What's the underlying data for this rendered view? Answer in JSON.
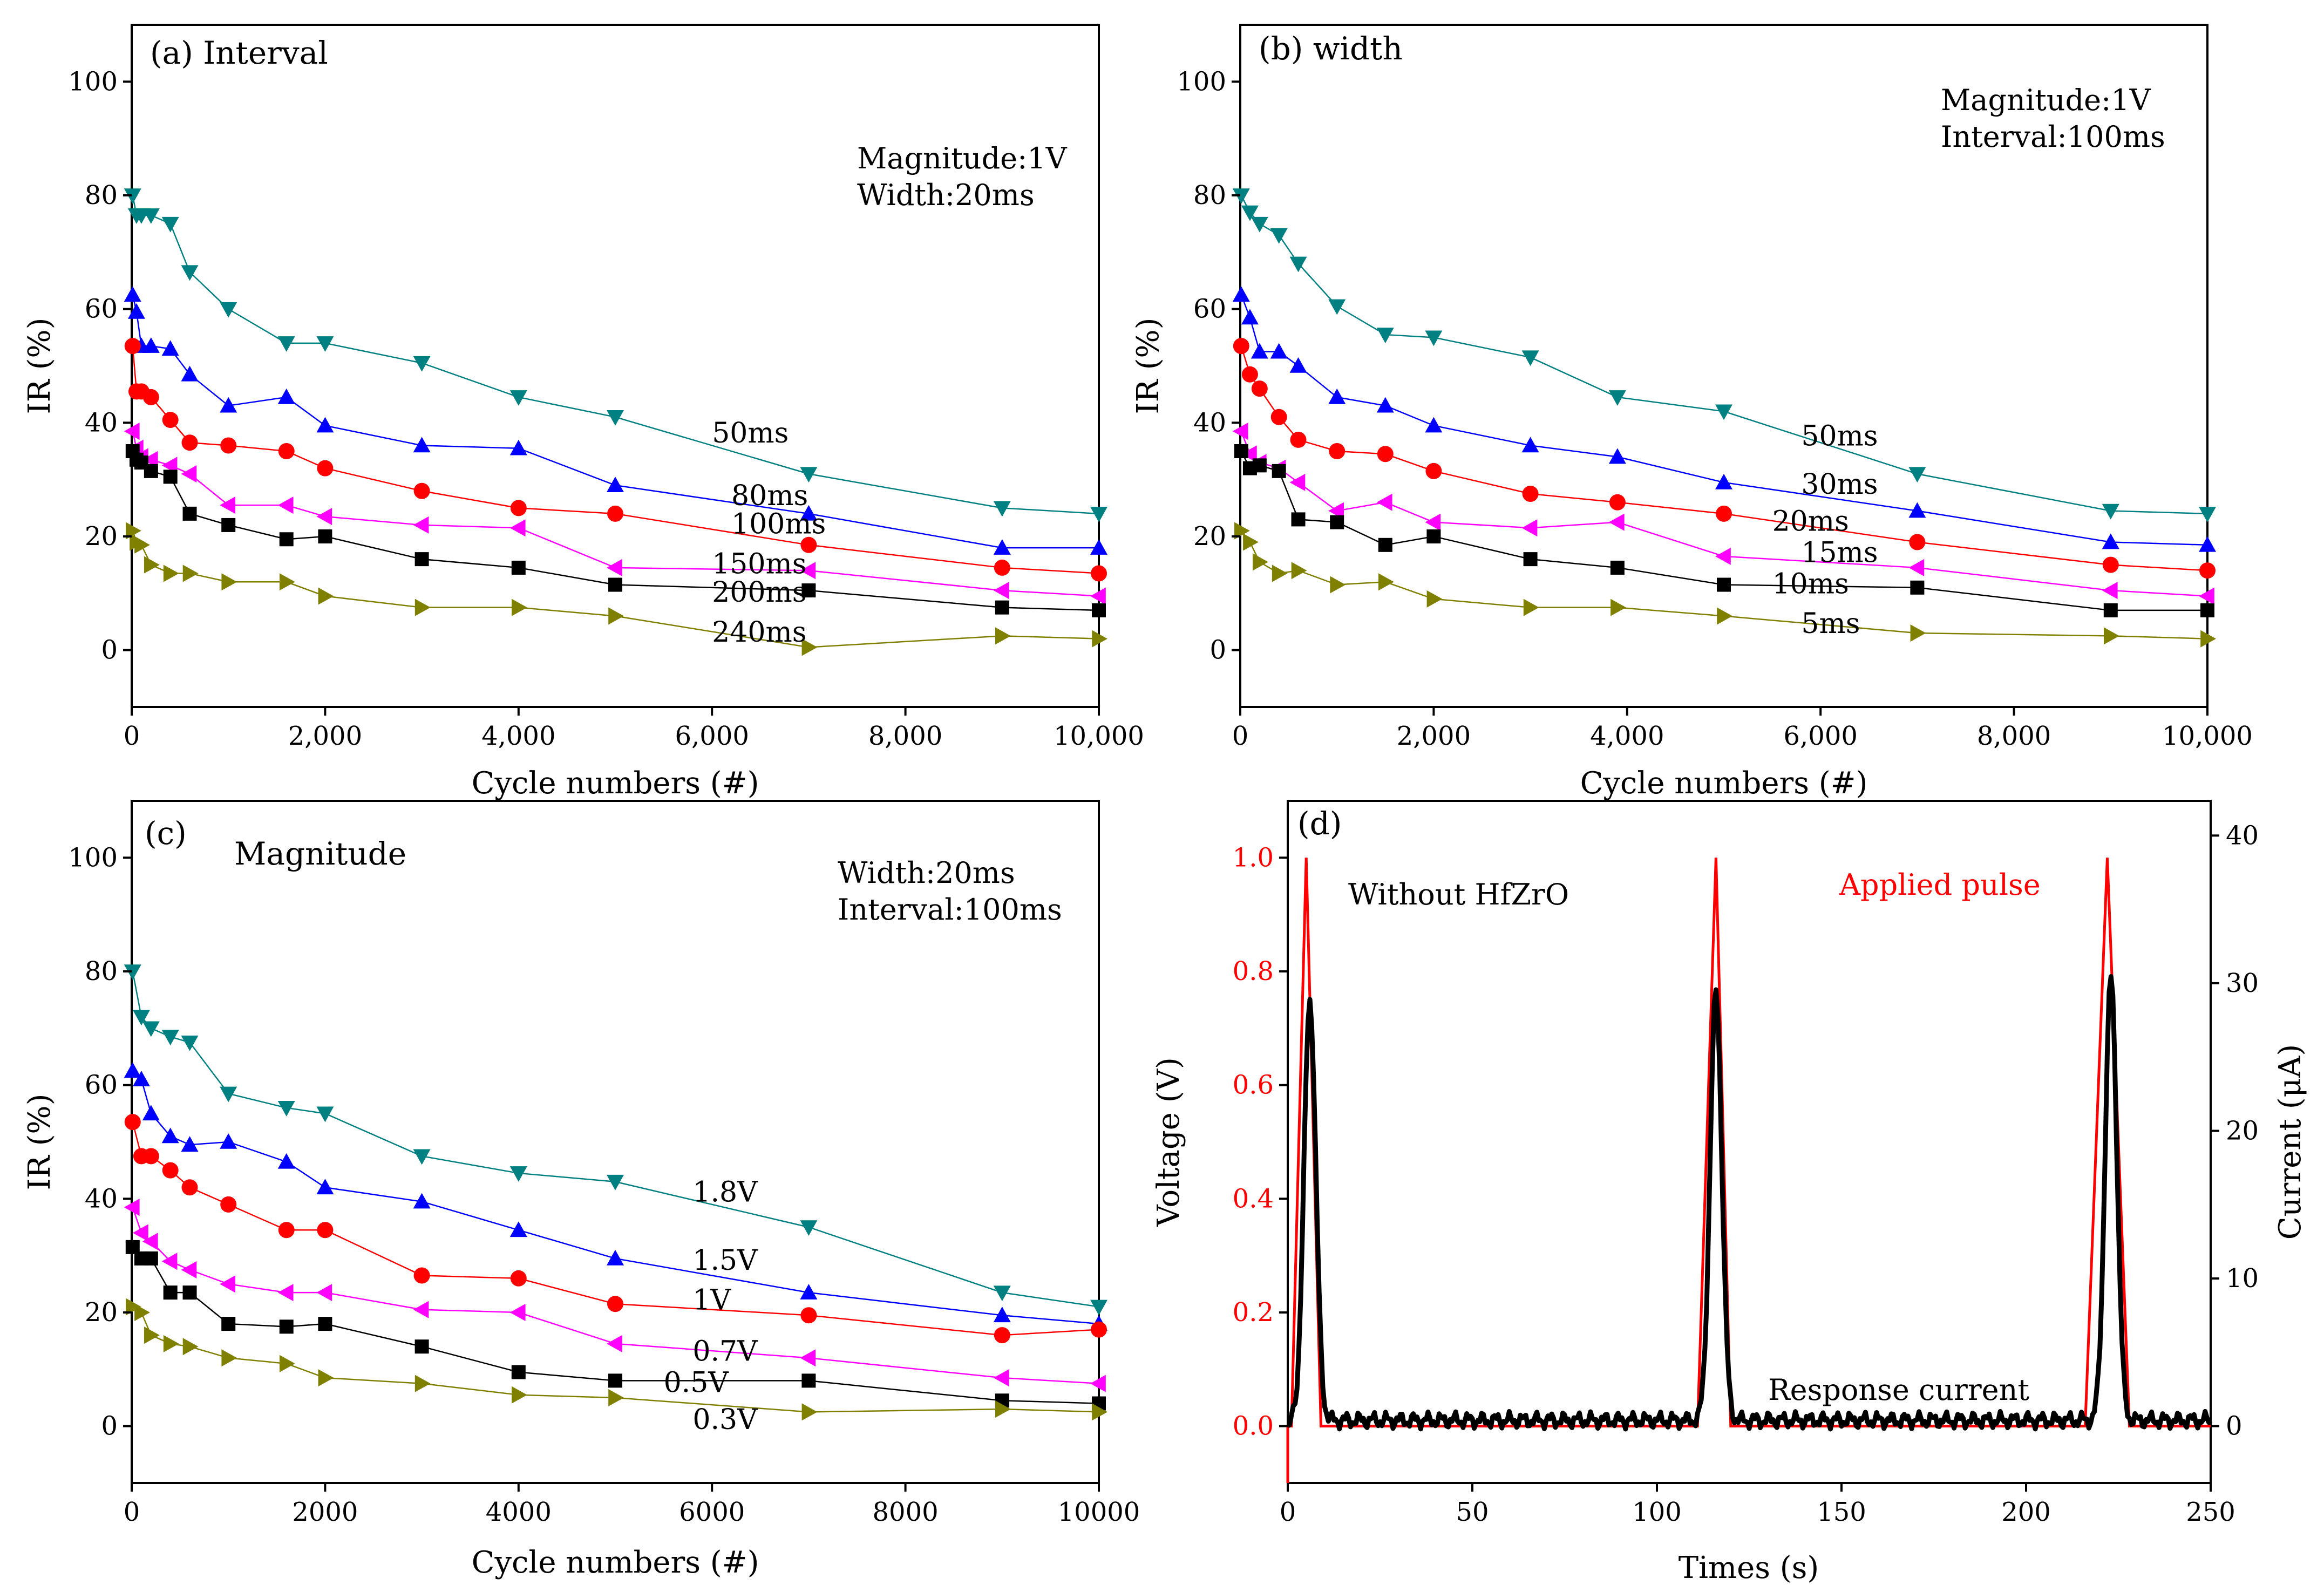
{
  "colors": {
    "cyan": "#008080",
    "blue": "#0000ff",
    "red": "#ff0000",
    "magenta": "#ff00ff",
    "black": "#000000",
    "olive": "#808000",
    "pulse": "#ff0000",
    "current": "#000000"
  },
  "chart_data": [
    {
      "id": "a",
      "type": "line",
      "title": "(a)  Interval",
      "annotation": [
        "Magnitude:1V",
        "Width:20ms"
      ],
      "xlabel": "Cycle numbers (#)",
      "ylabel": "IR (%)",
      "xlim": [
        0,
        10000
      ],
      "ylim": [
        -10,
        110
      ],
      "xticks": [
        0,
        2000,
        4000,
        6000,
        8000,
        10000
      ],
      "xtick_labels": [
        "0",
        "2,000",
        "4,000",
        "6,000",
        "8,000",
        "10,000"
      ],
      "yticks": [
        0,
        20,
        40,
        60,
        80,
        100
      ],
      "ytick_labels": [
        "0",
        "20",
        "40",
        "60",
        "80",
        "100"
      ],
      "series": [
        {
          "name": "50ms",
          "color": "cyan",
          "marker": "triangle-down",
          "label_at": [
            6000,
            36.5
          ],
          "x": [
            10,
            50,
            100,
            200,
            400,
            600,
            1000,
            1600,
            2000,
            3000,
            4000,
            5000,
            7000,
            9000,
            10000
          ],
          "y": [
            80,
            76.5,
            76.5,
            76.5,
            75,
            66.5,
            60,
            54,
            54,
            50.5,
            44.5,
            41,
            31,
            25,
            24
          ]
        },
        {
          "name": "80ms",
          "color": "blue",
          "marker": "triangle-up",
          "label_at": [
            6200,
            25.5
          ],
          "x": [
            10,
            50,
            100,
            200,
            400,
            600,
            1000,
            1600,
            2000,
            3000,
            4000,
            5000,
            7000,
            9000,
            10000
          ],
          "y": [
            62.5,
            59.5,
            53.5,
            53.5,
            53,
            48.5,
            43,
            44.5,
            39.5,
            36,
            35.5,
            29,
            24,
            18,
            18
          ]
        },
        {
          "name": "100ms",
          "color": "red",
          "marker": "circle",
          "label_at": [
            6200,
            20.5
          ],
          "x": [
            10,
            50,
            100,
            200,
            400,
            600,
            1000,
            1600,
            2000,
            3000,
            4000,
            5000,
            7000,
            9000,
            10000
          ],
          "y": [
            53.5,
            45.5,
            45.5,
            44.5,
            40.5,
            36.5,
            36,
            35,
            32,
            28,
            25,
            24,
            18.5,
            14.5,
            13.5
          ]
        },
        {
          "name": "150ms",
          "color": "magenta",
          "marker": "triangle-left",
          "label_at": [
            6000,
            13.5
          ],
          "x": [
            10,
            50,
            100,
            200,
            400,
            600,
            1000,
            1600,
            2000,
            3000,
            4000,
            5000,
            7000,
            9000,
            10000
          ],
          "y": [
            38.5,
            35.5,
            34,
            33.5,
            32.5,
            31,
            25.5,
            25.5,
            23.5,
            22,
            21.5,
            14.5,
            14,
            10.5,
            9.5
          ]
        },
        {
          "name": "200ms",
          "color": "black",
          "marker": "square",
          "label_at": [
            6000,
            8.5
          ],
          "x": [
            10,
            50,
            100,
            200,
            400,
            600,
            1000,
            1600,
            2000,
            3000,
            4000,
            5000,
            7000,
            9000,
            10000
          ],
          "y": [
            35,
            33.5,
            33,
            31.5,
            30.5,
            24,
            22,
            19.5,
            20,
            16,
            14.5,
            11.5,
            10.5,
            7.5,
            7
          ]
        },
        {
          "name": "240ms",
          "color": "olive",
          "marker": "triangle-right",
          "label_at": [
            6000,
            1.5
          ],
          "x": [
            10,
            50,
            100,
            200,
            400,
            600,
            1000,
            1600,
            2000,
            3000,
            4000,
            5000,
            7000,
            9000,
            10000
          ],
          "y": [
            21,
            19,
            18.5,
            15,
            13.5,
            13.5,
            12,
            12,
            9.5,
            7.5,
            7.5,
            6,
            0.5,
            2.5,
            2
          ]
        }
      ]
    },
    {
      "id": "b",
      "type": "line",
      "title": "(b)  width",
      "annotation": [
        "Magnitude:1V",
        "Interval:100ms"
      ],
      "xlabel": "Cycle numbers (#)",
      "ylabel": "IR (%)",
      "xlim": [
        0,
        10000
      ],
      "ylim": [
        -10,
        110
      ],
      "xticks": [
        0,
        2000,
        4000,
        6000,
        8000,
        10000
      ],
      "xtick_labels": [
        "0",
        "2,000",
        "4,000",
        "6,000",
        "8,000",
        "10,000"
      ],
      "yticks": [
        0,
        20,
        40,
        60,
        80,
        100
      ],
      "ytick_labels": [
        "0",
        "20",
        "40",
        "60",
        "80",
        "100"
      ],
      "series": [
        {
          "name": "50ms",
          "color": "cyan",
          "marker": "triangle-down",
          "label_at": [
            5800,
            36
          ],
          "x": [
            10,
            100,
            200,
            400,
            600,
            1000,
            1500,
            2000,
            3000,
            3900,
            5000,
            7000,
            9000,
            10000
          ],
          "y": [
            80,
            77,
            75,
            73,
            68,
            60.5,
            55.5,
            55,
            51.5,
            44.5,
            42,
            31,
            24.5,
            24
          ]
        },
        {
          "name": "30ms",
          "color": "blue",
          "marker": "triangle-up",
          "label_at": [
            5800,
            27.5
          ],
          "x": [
            10,
            100,
            200,
            400,
            600,
            1000,
            1500,
            2000,
            3000,
            3900,
            5000,
            7000,
            9000,
            10000
          ],
          "y": [
            62.5,
            58.5,
            52.5,
            52.5,
            50,
            44.5,
            43,
            39.5,
            36,
            34,
            29.5,
            24.5,
            19,
            18.5
          ]
        },
        {
          "name": "20ms",
          "color": "red",
          "marker": "circle",
          "label_at": [
            5500,
            21
          ],
          "x": [
            10,
            100,
            200,
            400,
            600,
            1000,
            1500,
            2000,
            3000,
            3900,
            5000,
            7000,
            9000,
            10000
          ],
          "y": [
            53.5,
            48.5,
            46,
            41,
            37,
            35,
            34.5,
            31.5,
            27.5,
            26,
            24,
            19,
            15,
            14
          ]
        },
        {
          "name": "15ms",
          "color": "magenta",
          "marker": "triangle-left",
          "label_at": [
            5800,
            15.5
          ],
          "x": [
            10,
            100,
            200,
            400,
            600,
            1000,
            1500,
            2000,
            3000,
            3900,
            5000,
            7000,
            9000,
            10000
          ],
          "y": [
            38.5,
            34.5,
            33,
            32,
            29.5,
            24.5,
            26,
            22.5,
            21.5,
            22.5,
            16.5,
            14.5,
            10.5,
            9.5
          ]
        },
        {
          "name": "10ms",
          "color": "black",
          "marker": "square",
          "label_at": [
            5500,
            10
          ]
        },
        {
          "name": "5ms",
          "color": "olive",
          "marker": "triangle-right",
          "label_at": [
            5800,
            3
          ],
          "x": [
            10,
            100,
            200,
            400,
            600,
            1000,
            1500,
            2000,
            3000,
            3900,
            5000,
            7000,
            9000,
            10000
          ],
          "y": [
            21,
            19,
            15.5,
            13.5,
            14,
            11.5,
            12,
            9,
            7.5,
            7.5,
            6,
            3,
            2.5,
            2
          ]
        }
      ],
      "extra_series": {
        "10ms": {
          "x": [
            10,
            100,
            200,
            400,
            600,
            1000,
            1500,
            2000,
            3000,
            3900,
            5000,
            7000,
            9000,
            10000
          ],
          "y": [
            35,
            32,
            32.5,
            31.5,
            23,
            22.5,
            18.5,
            20,
            16,
            14.5,
            11.5,
            11,
            7,
            7
          ]
        }
      }
    },
    {
      "id": "c",
      "type": "line",
      "title": "(c)",
      "title_extra": "Magnitude",
      "annotation": [
        "Width:20ms",
        "Interval:100ms"
      ],
      "xlabel": "Cycle numbers (#)",
      "ylabel": "IR (%)",
      "xlim": [
        0,
        10000
      ],
      "ylim": [
        -10,
        110
      ],
      "xticks": [
        0,
        2000,
        4000,
        6000,
        8000,
        10000
      ],
      "xtick_labels": [
        "0",
        "2000",
        "4000",
        "6000",
        "8000",
        "10000"
      ],
      "yticks": [
        0,
        20,
        40,
        60,
        80,
        100
      ],
      "ytick_labels": [
        "0",
        "20",
        "40",
        "60",
        "80",
        "100"
      ],
      "series": [
        {
          "name": "1.8V",
          "color": "cyan",
          "marker": "triangle-down",
          "label_at": [
            5800,
            39.5
          ],
          "x": [
            10,
            100,
            200,
            400,
            600,
            1000,
            1600,
            2000,
            3000,
            4000,
            5000,
            7000,
            9000,
            10000
          ],
          "y": [
            80,
            72,
            70,
            68.5,
            67.5,
            58.5,
            56,
            55,
            47.5,
            44.5,
            43,
            35,
            23.5,
            21
          ]
        },
        {
          "name": "1.5V",
          "color": "blue",
          "marker": "triangle-up",
          "label_at": [
            5800,
            27.5
          ],
          "x": [
            10,
            100,
            200,
            400,
            600,
            1000,
            1600,
            2000,
            3000,
            4000,
            5000,
            7000,
            9000,
            10000
          ],
          "y": [
            62.5,
            61,
            55,
            51,
            49.5,
            50,
            46.5,
            42,
            39.5,
            34.5,
            29.5,
            23.5,
            19.5,
            18
          ]
        },
        {
          "name": "1V",
          "color": "red",
          "marker": "circle",
          "label_at": [
            5800,
            20.5
          ],
          "x": [
            10,
            100,
            200,
            400,
            600,
            1000,
            1600,
            2000,
            3000,
            4000,
            5000,
            7000,
            9000,
            10000
          ],
          "y": [
            53.5,
            47.5,
            47.5,
            45,
            42,
            39,
            34.5,
            34.5,
            26.5,
            26,
            21.5,
            19.5,
            16,
            17
          ]
        },
        {
          "name": "0.7V",
          "color": "magenta",
          "marker": "triangle-left",
          "label_at": [
            5800,
            11.5
          ],
          "x": [
            10,
            100,
            200,
            400,
            600,
            1000,
            1600,
            2000,
            3000,
            4000,
            5000,
            7000,
            9000,
            10000
          ],
          "y": [
            38.5,
            34,
            32.5,
            29,
            27.5,
            25,
            23.5,
            23.5,
            20.5,
            20,
            14.5,
            12,
            8.5,
            7.5
          ]
        },
        {
          "name": "0.5V",
          "color": "black",
          "marker": "square",
          "label_at": [
            5500,
            6
          ]
        },
        {
          "name": "0.3V",
          "color": "olive",
          "marker": "triangle-right",
          "label_at": [
            5800,
            -0.5
          ],
          "x": [
            10,
            100,
            200,
            400,
            600,
            1000,
            1600,
            2000,
            3000,
            4000,
            5000,
            7000,
            9000,
            10000
          ],
          "y": [
            21,
            20,
            16,
            14.5,
            14,
            12,
            11,
            8.5,
            7.5,
            5.5,
            5,
            2.5,
            3,
            2.5
          ]
        }
      ],
      "extra_series": {
        "0.5V": {
          "x": [
            10,
            100,
            200,
            400,
            600,
            1000,
            1600,
            2000,
            3000,
            4000,
            5000,
            7000,
            9000,
            10000
          ],
          "y": [
            31.5,
            29.5,
            29.5,
            23.5,
            23.5,
            18,
            17.5,
            18,
            14,
            9.5,
            8,
            8,
            4.5,
            4
          ]
        }
      }
    },
    {
      "id": "d",
      "type": "line",
      "title": "(d)",
      "xlabel": "Times (s)",
      "ylabel": "Voltage (V)",
      "y2label": "Current (μA)",
      "xlim": [
        0,
        250
      ],
      "ylim": [
        -0.1,
        1.1
      ],
      "y2lim": [
        -3.85,
        42.35
      ],
      "xticks": [
        0,
        50,
        100,
        150,
        200,
        250
      ],
      "xtick_labels": [
        "0",
        "50",
        "100",
        "150",
        "200",
        "250"
      ],
      "yticks": [
        0,
        0.2,
        0.4,
        0.6,
        0.8,
        1.0
      ],
      "ytick_labels": [
        "0.0",
        "0.2",
        "0.4",
        "0.6",
        "0.8",
        "1.0"
      ],
      "y2ticks": [
        0,
        10,
        20,
        30,
        40
      ],
      "y2tick_labels": [
        "0",
        "10",
        "20",
        "30",
        "40"
      ],
      "texts": {
        "left": "Without HfZrO",
        "right": "Applied pulse",
        "bottom": "Response current"
      },
      "pulse": {
        "name": "Applied pulse",
        "color": "pulse",
        "x": [
          0,
          0,
          1,
          5,
          9,
          111,
          116,
          120,
          216,
          222,
          228,
          250
        ],
        "y": [
          -0.1,
          0,
          0,
          1.0,
          0,
          0,
          1.0,
          0,
          0,
          1.0,
          0,
          0
        ]
      },
      "current": {
        "name": "Response current",
        "color": "current",
        "peaks": [
          [
            6,
            28.5
          ],
          [
            116,
            29
          ],
          [
            223,
            30
          ]
        ],
        "baseline": 0.4
      }
    }
  ]
}
